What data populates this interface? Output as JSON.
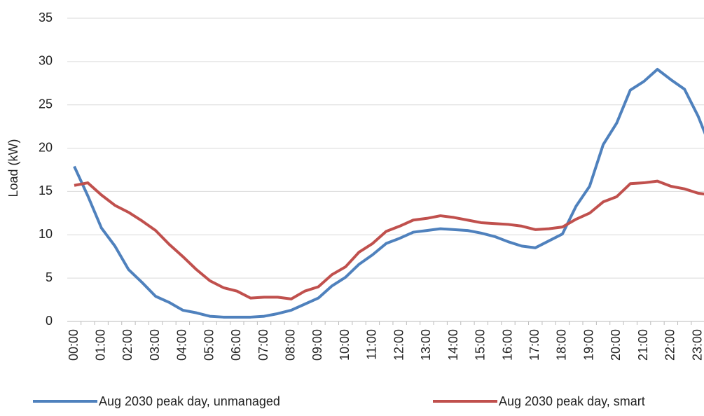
{
  "chart_data": {
    "type": "line",
    "y_label": "Load (kW)",
    "categories": [
      "00:00",
      null,
      "01:00",
      null,
      "02:00",
      null,
      "03:00",
      null,
      "04:00",
      null,
      "05:00",
      null,
      "06:00",
      null,
      "07:00",
      null,
      "08:00",
      null,
      "09:00",
      null,
      "10:00",
      null,
      "11:00",
      null,
      "12:00",
      null,
      "13:00",
      null,
      "14:00",
      null,
      "15:00",
      null,
      "16:00",
      null,
      "17:00",
      null,
      "18:00",
      null,
      "19:00",
      null,
      "20:00",
      null,
      "21:00",
      null,
      "22:00",
      null,
      "23:00",
      null
    ],
    "series": [
      {
        "name": "Aug 2030 peak day, unmanaged",
        "color": "#4f81bd",
        "values": [
          17.9,
          14.5,
          10.8,
          8.7,
          6.0,
          4.5,
          2.9,
          2.2,
          1.3,
          1.0,
          0.6,
          0.5,
          0.5,
          0.5,
          0.6,
          0.9,
          1.3,
          2.0,
          2.7,
          4.1,
          5.1,
          6.6,
          7.7,
          9.0,
          9.6,
          10.3,
          10.5,
          10.7,
          10.6,
          10.5,
          10.2,
          9.8,
          9.2,
          8.7,
          8.5,
          9.3,
          10.1,
          13.3,
          15.6,
          20.4,
          22.9,
          26.7,
          27.7,
          29.1,
          27.9,
          26.8,
          23.7,
          19.8
        ]
      },
      {
        "name": "Aug 2030 peak day, smart",
        "color": "#c0504d",
        "values": [
          15.7,
          16.0,
          14.6,
          13.4,
          12.6,
          11.6,
          10.5,
          8.9,
          7.5,
          6.0,
          4.7,
          3.9,
          3.5,
          2.7,
          2.8,
          2.8,
          2.6,
          3.5,
          4.0,
          5.4,
          6.3,
          8.0,
          9.0,
          10.4,
          11.0,
          11.7,
          11.9,
          12.2,
          12.0,
          11.7,
          11.4,
          11.3,
          11.2,
          11.0,
          10.6,
          10.7,
          10.9,
          11.8,
          12.5,
          13.8,
          14.4,
          15.9,
          16.0,
          16.2,
          15.6,
          15.3,
          14.8,
          14.6
        ]
      }
    ],
    "ylim": [
      0,
      35
    ],
    "yticks": [
      0,
      5,
      10,
      15,
      20,
      25,
      30,
      35
    ],
    "grid": true,
    "legend": "bottom"
  }
}
